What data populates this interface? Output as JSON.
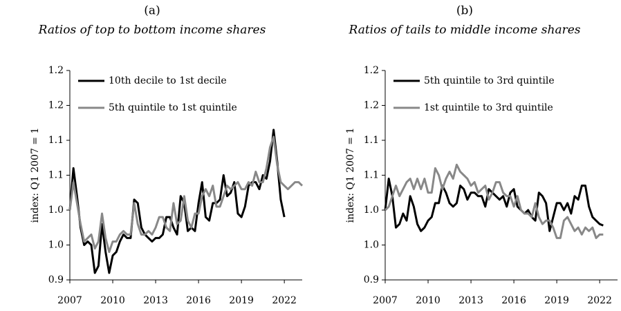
{
  "chart_data": [
    {
      "type": "line",
      "title": "(a)",
      "subtitle": "Ratios of top to bottom income shares",
      "ylabel": "index: Q1 2007 = 1",
      "x": [
        2007,
        2007.25,
        2007.5,
        2007.75,
        2008,
        2008.25,
        2008.5,
        2008.75,
        2009,
        2009.25,
        2009.5,
        2009.75,
        2010,
        2010.25,
        2010.5,
        2010.75,
        2011,
        2011.25,
        2011.5,
        2011.75,
        2012,
        2012.25,
        2012.5,
        2012.75,
        2013,
        2013.25,
        2013.5,
        2013.75,
        2014,
        2014.25,
        2014.5,
        2014.75,
        2015,
        2015.25,
        2015.5,
        2015.75,
        2016,
        2016.25,
        2016.5,
        2016.75,
        2017,
        2017.25,
        2017.5,
        2017.75,
        2018,
        2018.25,
        2018.5,
        2018.75,
        2019,
        2019.25,
        2019.5,
        2019.75,
        2020,
        2020.25,
        2020.5,
        2020.75,
        2021,
        2021.25,
        2021.5,
        2021.75,
        2022,
        2022.25,
        2022.5,
        2022.75,
        2023,
        2023.25
      ],
      "xlim": [
        2007,
        2023.25
      ],
      "xticks": [
        2007,
        2010,
        2013,
        2016,
        2019,
        2022
      ],
      "ylim": [
        0.9,
        1.2
      ],
      "yticks": [
        {
          "value": 0.9,
          "label": "0.9"
        },
        {
          "value": 0.95,
          "label": "1.0"
        },
        {
          "value": 1.0,
          "label": "1.0"
        },
        {
          "value": 1.05,
          "label": "1.1"
        },
        {
          "value": 1.1,
          "label": "1.1"
        },
        {
          "value": 1.15,
          "label": "1.2"
        },
        {
          "value": 1.2,
          "label": "1.2"
        }
      ],
      "series": [
        {
          "name": "10th decile to 1st decile",
          "color": "#000000",
          "values": [
            1.0,
            1.06,
            1.02,
            0.975,
            0.95,
            0.955,
            0.95,
            0.91,
            0.92,
            0.98,
            0.94,
            0.91,
            0.935,
            0.94,
            0.955,
            0.965,
            0.96,
            0.96,
            1.015,
            1.01,
            0.975,
            0.965,
            0.96,
            0.955,
            0.96,
            0.96,
            0.965,
            0.99,
            0.99,
            0.975,
            0.965,
            1.02,
            1.01,
            0.97,
            0.975,
            0.97,
            1.01,
            1.04,
            0.99,
            0.985,
            1.01,
            1.01,
            1.015,
            1.05,
            1.02,
            1.025,
            1.04,
            0.995,
            0.99,
            1.005,
            1.035,
            1.04,
            1.04,
            1.03,
            1.05,
            1.045,
            1.07,
            1.115,
            1.07,
            1.015,
            0.99,
            null,
            null,
            null,
            null,
            null
          ]
        },
        {
          "name": "5th quintile to 1st quintile",
          "color": "#888888",
          "values": [
            1.0,
            1.04,
            1.01,
            0.98,
            0.955,
            0.96,
            0.965,
            0.945,
            0.955,
            0.995,
            0.96,
            0.94,
            0.955,
            0.955,
            0.965,
            0.97,
            0.965,
            0.965,
            1.01,
            0.98,
            0.965,
            0.965,
            0.97,
            0.965,
            0.975,
            0.99,
            0.99,
            0.975,
            0.97,
            1.01,
            0.98,
            0.985,
            1.02,
            0.985,
            0.975,
            0.995,
            0.995,
            1.02,
            1.03,
            1.02,
            1.035,
            1.005,
            1.005,
            1.02,
            1.035,
            1.03,
            1.035,
            1.04,
            1.03,
            1.03,
            1.04,
            1.035,
            1.055,
            1.04,
            1.04,
            1.06,
            1.09,
            1.105,
            1.065,
            1.04,
            1.035,
            1.03,
            1.035,
            1.04,
            1.04,
            1.035
          ]
        }
      ]
    },
    {
      "type": "line",
      "title": "(b)",
      "subtitle": "Ratios of tails to middle income shares",
      "ylabel": "index: Q1 2007 = 1",
      "x": [
        2007,
        2007.25,
        2007.5,
        2007.75,
        2008,
        2008.25,
        2008.5,
        2008.75,
        2009,
        2009.25,
        2009.5,
        2009.75,
        2010,
        2010.25,
        2010.5,
        2010.75,
        2011,
        2011.25,
        2011.5,
        2011.75,
        2012,
        2012.25,
        2012.5,
        2012.75,
        2013,
        2013.25,
        2013.5,
        2013.75,
        2014,
        2014.25,
        2014.5,
        2014.75,
        2015,
        2015.25,
        2015.5,
        2015.75,
        2016,
        2016.25,
        2016.5,
        2016.75,
        2017,
        2017.25,
        2017.5,
        2017.75,
        2018,
        2018.25,
        2018.5,
        2018.75,
        2019,
        2019.25,
        2019.5,
        2019.75,
        2020,
        2020.25,
        2020.5,
        2020.75,
        2021,
        2021.25,
        2021.5,
        2021.75,
        2022,
        2022.25,
        2022.5,
        2022.75,
        2023,
        2023.25
      ],
      "xlim": [
        2007,
        2023.25
      ],
      "xticks": [
        2007,
        2010,
        2013,
        2016,
        2019,
        2022
      ],
      "ylim": [
        0.9,
        1.2
      ],
      "yticks": [
        {
          "value": 0.9,
          "label": "0.9"
        },
        {
          "value": 0.95,
          "label": "1.0"
        },
        {
          "value": 1.0,
          "label": "1.0"
        },
        {
          "value": 1.05,
          "label": "1.1"
        },
        {
          "value": 1.1,
          "label": "1.1"
        },
        {
          "value": 1.15,
          "label": "1.2"
        },
        {
          "value": 1.2,
          "label": "1.2"
        }
      ],
      "series": [
        {
          "name": "5th quintile to 3rd quintile",
          "color": "#000000",
          "values": [
            1.0,
            1.045,
            1.02,
            0.975,
            0.98,
            0.995,
            0.985,
            1.02,
            1.005,
            0.98,
            0.97,
            0.975,
            0.985,
            0.99,
            1.01,
            1.01,
            1.035,
            1.025,
            1.01,
            1.005,
            1.01,
            1.035,
            1.03,
            1.015,
            1.025,
            1.025,
            1.02,
            1.02,
            1.005,
            1.03,
            1.025,
            1.02,
            1.015,
            1.02,
            1.005,
            1.025,
            1.03,
            1.005,
            1.0,
            0.995,
            1.0,
            0.99,
            0.985,
            1.025,
            1.02,
            1.01,
            0.97,
            0.99,
            1.01,
            1.01,
            1.0,
            1.01,
            0.995,
            1.02,
            1.015,
            1.035,
            1.035,
            1.005,
            0.99,
            0.985,
            0.98,
            0.978,
            null,
            null,
            null,
            null
          ]
        },
        {
          "name": "1st quintile to 3rd quintile",
          "color": "#888888",
          "values": [
            1.0,
            1.005,
            1.02,
            1.035,
            1.02,
            1.03,
            1.04,
            1.045,
            1.03,
            1.045,
            1.03,
            1.045,
            1.025,
            1.025,
            1.06,
            1.05,
            1.03,
            1.045,
            1.055,
            1.045,
            1.065,
            1.055,
            1.05,
            1.045,
            1.035,
            1.04,
            1.025,
            1.03,
            1.035,
            1.015,
            1.025,
            1.04,
            1.04,
            1.025,
            1.02,
            1.02,
            1.005,
            1.02,
            1.0,
            0.995,
            0.995,
            0.99,
            1.01,
            0.99,
            0.98,
            0.985,
            0.985,
            0.975,
            0.96,
            0.96,
            0.985,
            0.99,
            0.98,
            0.97,
            0.975,
            0.965,
            0.975,
            0.97,
            0.975,
            0.96,
            0.965,
            0.965,
            null,
            null,
            null,
            null
          ]
        }
      ]
    }
  ]
}
